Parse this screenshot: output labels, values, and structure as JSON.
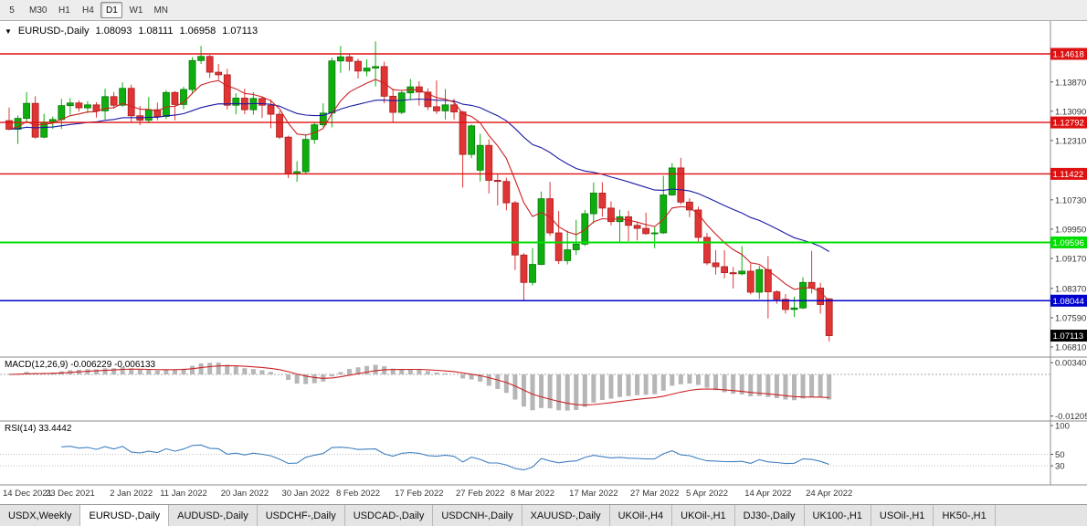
{
  "colors": {
    "up_candle": "#0fae0f",
    "up_candle_border": "#077807",
    "down_candle": "#e03535",
    "down_candle_border": "#a81d1d",
    "ma_fast": "#cc2222",
    "ma_slow": "#1a1aa6",
    "macd_histogram": "#b6b6b6",
    "macd_signal": "#cc2222",
    "rsi_line": "#4080c0",
    "axis_text": "#333333",
    "badge_text": "#ffffff"
  },
  "toolbar": {
    "timeframes": [
      {
        "label": "5",
        "active": false
      },
      {
        "label": "M30",
        "active": false
      },
      {
        "label": "H1",
        "active": false
      },
      {
        "label": "H4",
        "active": false
      },
      {
        "label": "D1",
        "active": true
      },
      {
        "label": "W1",
        "active": false
      },
      {
        "label": "MN",
        "active": false
      }
    ]
  },
  "chart_header": {
    "dropdown_icon": "▼",
    "symbol": "EURUSD-,Daily",
    "open": "1.08093",
    "high": "1.08111",
    "low": "1.06958",
    "close": "1.07113"
  },
  "price_axis": {
    "tick_labels": [
      "1.13870",
      "1.13090",
      "1.12310",
      "1.10730",
      "1.09950",
      "1.09170",
      "1.08370",
      "1.07590",
      "1.06810"
    ]
  },
  "hlines": [
    {
      "price": "1.14618",
      "color": "#dd1111",
      "width": 1.4
    },
    {
      "price": "1.12792",
      "color": "#dd1111",
      "width": 1.4
    },
    {
      "price": "1.11422",
      "color": "#dd1111",
      "width": 1.4
    },
    {
      "price": "1.09596",
      "color": "#00dd00",
      "width": 2
    },
    {
      "price": "1.08044",
      "color": "#0000cc",
      "width": 1.6
    }
  ],
  "current_price": {
    "label": "1.07113",
    "color": "#000000"
  },
  "macd_panel": {
    "label": "MACD(12,26,9) -0.006229 -0.006133",
    "axis_labels": [
      "0.00340",
      "-0.01205"
    ]
  },
  "rsi_panel": {
    "label": "RSI(14) 33.4442",
    "axis_labels": [
      "100",
      "50",
      "30"
    ]
  },
  "date_axis": [
    {
      "text": "14 Dec 2021",
      "bar": 0
    },
    {
      "text": "23 Dec 2021",
      "bar": 7
    },
    {
      "text": "2 Jan 2022",
      "bar": 14
    },
    {
      "text": "11 Jan 2022",
      "bar": 20
    },
    {
      "text": "20 Jan 2022",
      "bar": 27
    },
    {
      "text": "30 Jan 2022",
      "bar": 34
    },
    {
      "text": "8 Feb 2022",
      "bar": 40
    },
    {
      "text": "17 Feb 2022",
      "bar": 47
    },
    {
      "text": "27 Feb 2022",
      "bar": 54
    },
    {
      "text": "8 Mar 2022",
      "bar": 60
    },
    {
      "text": "17 Mar 2022",
      "bar": 67
    },
    {
      "text": "27 Mar 2022",
      "bar": 74
    },
    {
      "text": "5 Apr 2022",
      "bar": 80
    },
    {
      "text": "14 Apr 2022",
      "bar": 87
    },
    {
      "text": "24 Apr 2022",
      "bar": 94
    }
  ],
  "tabs": [
    {
      "label": "USDX,Weekly",
      "active": false
    },
    {
      "label": "EURUSD-,Daily",
      "active": true
    },
    {
      "label": "AUDUSD-,Daily",
      "active": false
    },
    {
      "label": "USDCHF-,Daily",
      "active": false
    },
    {
      "label": "USDCAD-,Daily",
      "active": false
    },
    {
      "label": "USDCNH-,Daily",
      "active": false
    },
    {
      "label": "XAUUSD-,Daily",
      "active": false
    },
    {
      "label": "UKOil-,H4",
      "active": false
    },
    {
      "label": "UKOil-,H1",
      "active": false
    },
    {
      "label": "DJ30-,Daily",
      "active": false
    },
    {
      "label": "UK100-,H1",
      "active": false
    },
    {
      "label": "USOil-,H1",
      "active": false
    },
    {
      "label": "HK50-,H1",
      "active": false
    }
  ],
  "chart_data": {
    "type": "candlestick",
    "symbol": "EURUSD-",
    "timeframe": "Daily",
    "title": "EURUSD-,Daily",
    "last_bar_ohlc": {
      "open": 1.08093,
      "high": 1.08111,
      "low": 1.06958,
      "close": 1.07113
    },
    "horizontal_levels": [
      1.14618,
      1.12792,
      1.11422,
      1.09596,
      1.08044
    ],
    "y_axis_ticks": [
      1.1387,
      1.1309,
      1.1231,
      1.1073,
      1.0995,
      1.0917,
      1.0837,
      1.0759,
      1.0681
    ],
    "y_range": [
      1.0654,
      1.1549
    ],
    "x_axis_dates": [
      "14 Dec 2021",
      "23 Dec 2021",
      "2 Jan 2022",
      "11 Jan 2022",
      "20 Jan 2022",
      "30 Jan 2022",
      "8 Feb 2022",
      "17 Feb 2022",
      "27 Feb 2022",
      "8 Mar 2022",
      "17 Mar 2022",
      "27 Mar 2022",
      "5 Apr 2022",
      "14 Apr 2022",
      "24 Apr 2022"
    ],
    "indicators": {
      "macd": {
        "fast": 12,
        "slow": 26,
        "signal": 9,
        "value": -0.006229,
        "signal_value": -0.006133,
        "axis_max": 0.0034,
        "axis_min": -0.01205
      },
      "rsi": {
        "period": 14,
        "value": 33.4442,
        "levels": [
          100,
          50,
          30
        ]
      },
      "overlays": [
        "fast red moving average",
        "slow blue moving average"
      ]
    },
    "bars": [
      [
        1.1284,
        1.1319,
        1.1258,
        1.1261
      ],
      [
        1.1261,
        1.1298,
        1.1222,
        1.129
      ],
      [
        1.129,
        1.136,
        1.1282,
        1.133
      ],
      [
        1.133,
        1.1349,
        1.1236,
        1.124
      ],
      [
        1.124,
        1.1302,
        1.1237,
        1.128
      ],
      [
        1.128,
        1.1295,
        1.1262,
        1.1287
      ],
      [
        1.1287,
        1.1342,
        1.1262,
        1.1324
      ],
      [
        1.1324,
        1.1344,
        1.13,
        1.1331
      ],
      [
        1.1331,
        1.1338,
        1.1308,
        1.1318
      ],
      [
        1.1318,
        1.1336,
        1.1304,
        1.1326
      ],
      [
        1.1326,
        1.1333,
        1.1292,
        1.131
      ],
      [
        1.131,
        1.1369,
        1.1287,
        1.1348
      ],
      [
        1.1348,
        1.136,
        1.1316,
        1.1325
      ],
      [
        1.1325,
        1.1386,
        1.1321,
        1.137
      ],
      [
        1.137,
        1.138,
        1.1279,
        1.1297
      ],
      [
        1.1297,
        1.1323,
        1.1272,
        1.1285
      ],
      [
        1.1285,
        1.1347,
        1.1277,
        1.1313
      ],
      [
        1.1313,
        1.1332,
        1.1285,
        1.1295
      ],
      [
        1.1295,
        1.1365,
        1.1288,
        1.1359
      ],
      [
        1.1359,
        1.1363,
        1.1285,
        1.1327
      ],
      [
        1.1327,
        1.1374,
        1.1314,
        1.1367
      ],
      [
        1.1367,
        1.1453,
        1.1355,
        1.1444
      ],
      [
        1.1444,
        1.1483,
        1.1435,
        1.1455
      ],
      [
        1.1455,
        1.1459,
        1.1398,
        1.1413
      ],
      [
        1.1413,
        1.1435,
        1.1393,
        1.1406
      ],
      [
        1.1406,
        1.1422,
        1.1314,
        1.1325
      ],
      [
        1.1325,
        1.1357,
        1.1301,
        1.1344
      ],
      [
        1.1344,
        1.1369,
        1.1301,
        1.1313
      ],
      [
        1.1313,
        1.136,
        1.13,
        1.1343
      ],
      [
        1.1343,
        1.1349,
        1.1291,
        1.1325
      ],
      [
        1.1325,
        1.134,
        1.1264,
        1.1301
      ],
      [
        1.1301,
        1.131,
        1.1235,
        1.124
      ],
      [
        1.124,
        1.1244,
        1.1131,
        1.1143
      ],
      [
        1.1143,
        1.1176,
        1.1121,
        1.1148
      ],
      [
        1.1148,
        1.1248,
        1.1141,
        1.1234
      ],
      [
        1.1234,
        1.1279,
        1.1222,
        1.1273
      ],
      [
        1.1273,
        1.133,
        1.1267,
        1.1304
      ],
      [
        1.1304,
        1.1452,
        1.1266,
        1.1443
      ],
      [
        1.1443,
        1.1483,
        1.1411,
        1.1454
      ],
      [
        1.1454,
        1.1462,
        1.1417,
        1.1442
      ],
      [
        1.1442,
        1.1449,
        1.1396,
        1.1416
      ],
      [
        1.1416,
        1.1447,
        1.1402,
        1.1424
      ],
      [
        1.1424,
        1.1495,
        1.1375,
        1.1428
      ],
      [
        1.1428,
        1.1441,
        1.133,
        1.1349
      ],
      [
        1.1349,
        1.1369,
        1.128,
        1.1306
      ],
      [
        1.1306,
        1.1364,
        1.1301,
        1.1358
      ],
      [
        1.1358,
        1.1395,
        1.134,
        1.1374
      ],
      [
        1.1374,
        1.1389,
        1.1324,
        1.136
      ],
      [
        1.136,
        1.137,
        1.1312,
        1.1321
      ],
      [
        1.1321,
        1.1391,
        1.1302,
        1.131
      ],
      [
        1.131,
        1.1368,
        1.1287,
        1.1326
      ],
      [
        1.1326,
        1.1342,
        1.1287,
        1.1307
      ],
      [
        1.1307,
        1.131,
        1.1106,
        1.1194
      ],
      [
        1.1194,
        1.1274,
        1.1184,
        1.127
      ],
      [
        1.1152,
        1.1249,
        1.1122,
        1.1218
      ],
      [
        1.1218,
        1.1234,
        1.109,
        1.1125
      ],
      [
        1.1125,
        1.1143,
        1.1058,
        1.1122
      ],
      [
        1.1122,
        1.1132,
        1.1045,
        1.1065
      ],
      [
        1.1065,
        1.107,
        1.0886,
        1.0926
      ],
      [
        1.0926,
        1.0931,
        1.0806,
        1.0853
      ],
      [
        1.0853,
        1.0945,
        1.0845,
        1.0901
      ],
      [
        1.0901,
        1.1095,
        1.0899,
        1.1076
      ],
      [
        1.1076,
        1.1121,
        1.0977,
        1.0985
      ],
      [
        1.0985,
        1.1043,
        1.0902,
        1.0911
      ],
      [
        1.0911,
        1.0991,
        1.0901,
        1.094
      ],
      [
        1.094,
        1.102,
        1.0926,
        1.0955
      ],
      [
        1.0955,
        1.1046,
        1.095,
        1.1036
      ],
      [
        1.1036,
        1.1119,
        1.101,
        1.1091
      ],
      [
        1.1091,
        1.112,
        1.1028,
        1.1051
      ],
      [
        1.1051,
        1.1069,
        1.1005,
        1.1015
      ],
      [
        1.1015,
        1.1047,
        1.0961,
        1.1028
      ],
      [
        1.1028,
        1.1044,
        1.0963,
        1.1005
      ],
      [
        1.1005,
        1.1014,
        1.0965,
        1.0997
      ],
      [
        1.0997,
        1.1039,
        1.098,
        1.0983
      ],
      [
        1.0983,
        1.1,
        1.0944,
        1.0985
      ],
      [
        1.0985,
        1.1137,
        1.0982,
        1.1086
      ],
      [
        1.1086,
        1.1171,
        1.1084,
        1.1158
      ],
      [
        1.1158,
        1.1185,
        1.1061,
        1.1067
      ],
      [
        1.1067,
        1.1077,
        1.1027,
        1.1046
      ],
      [
        1.1046,
        1.1055,
        1.096,
        1.0973
      ],
      [
        1.0973,
        1.0985,
        1.0899,
        1.0905
      ],
      [
        1.0905,
        1.0939,
        1.0874,
        1.0895
      ],
      [
        1.0895,
        1.0939,
        1.0864,
        1.0879
      ],
      [
        1.0879,
        1.0894,
        1.0837,
        1.0876
      ],
      [
        1.0876,
        1.095,
        1.0872,
        1.0883
      ],
      [
        1.0883,
        1.0904,
        1.0821,
        1.0827
      ],
      [
        1.0827,
        1.0897,
        1.0809,
        1.0887
      ],
      [
        1.0887,
        1.0923,
        1.0757,
        1.0828
      ],
      [
        1.0828,
        1.0832,
        1.0796,
        1.0808
      ],
      [
        1.0808,
        1.0822,
        1.077,
        1.0781
      ],
      [
        1.0781,
        1.0815,
        1.0761,
        1.0785
      ],
      [
        1.0785,
        1.0867,
        1.0782,
        1.0853
      ],
      [
        1.0853,
        1.0937,
        1.0824,
        1.0838
      ],
      [
        1.0838,
        1.0852,
        1.077,
        1.0794
      ],
      [
        1.08093,
        1.08111,
        1.06958,
        1.07113
      ]
    ]
  }
}
